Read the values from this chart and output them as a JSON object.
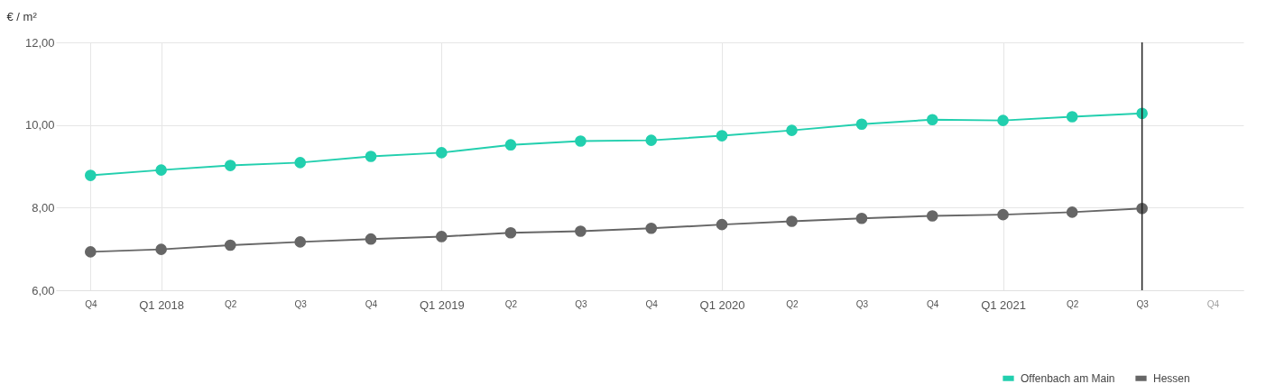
{
  "chart_data": {
    "type": "line",
    "ylabel": "€ / m²",
    "x": [
      "2017-10",
      "2018-01",
      "2018-04",
      "2018-07",
      "2018-10",
      "2019-01",
      "2019-04",
      "2019-07",
      "2019-10",
      "2020-01",
      "2020-04",
      "2020-07",
      "2020-10",
      "2021-01",
      "2021-04",
      "2021-07"
    ],
    "series": [
      {
        "name": "Offenbach am Main",
        "color": "#22cfae",
        "values": [
          8.78,
          8.91,
          9.02,
          9.09,
          9.24,
          9.33,
          9.52,
          9.61,
          9.63,
          9.74,
          9.87,
          10.02,
          10.13,
          10.11,
          10.2,
          10.28
        ]
      },
      {
        "name": "Hessen",
        "color": "#666666",
        "values": [
          6.93,
          6.99,
          7.09,
          7.17,
          7.24,
          7.3,
          7.39,
          7.43,
          7.5,
          7.59,
          7.67,
          7.74,
          7.8,
          7.83,
          7.89,
          7.98
        ]
      }
    ],
    "xlim": [
      "2017-08-17",
      "2021-11-10"
    ],
    "xticks": [
      {
        "value": "2017-10",
        "label": "Q4"
      },
      {
        "value": "2018-01",
        "label": "Q1 2018"
      },
      {
        "value": "2018-04",
        "label": "Q2"
      },
      {
        "value": "2018-07",
        "label": "Q3"
      },
      {
        "value": "2018-10",
        "label": "Q4"
      },
      {
        "value": "2019-01",
        "label": "Q1 2019"
      },
      {
        "value": "2019-04",
        "label": "Q2"
      },
      {
        "value": "2019-07",
        "label": "Q3"
      },
      {
        "value": "2019-10",
        "label": "Q4"
      },
      {
        "value": "2020-01",
        "label": "Q1 2020"
      },
      {
        "value": "2020-04",
        "label": "Q2"
      },
      {
        "value": "2020-07",
        "label": "Q3"
      },
      {
        "value": "2020-10",
        "label": "Q4"
      },
      {
        "value": "2021-01",
        "label": "Q1 2021"
      },
      {
        "value": "2021-04",
        "label": "Q2"
      },
      {
        "value": "2021-07",
        "label": "Q3"
      },
      {
        "value": "2021-10",
        "label": "Q4"
      }
    ],
    "ylim": [
      6,
      12
    ],
    "yticks": [
      {
        "value": 6,
        "label": "6,00"
      },
      {
        "value": 8,
        "label": "8,00"
      },
      {
        "value": 10,
        "label": "10,00"
      },
      {
        "value": 12,
        "label": "12,00"
      }
    ],
    "ref_lines": [
      {
        "axis": "x",
        "value": "2021-07",
        "color": "#222222"
      }
    ],
    "grid": true,
    "marker": "circle",
    "legend": "bottom right"
  }
}
